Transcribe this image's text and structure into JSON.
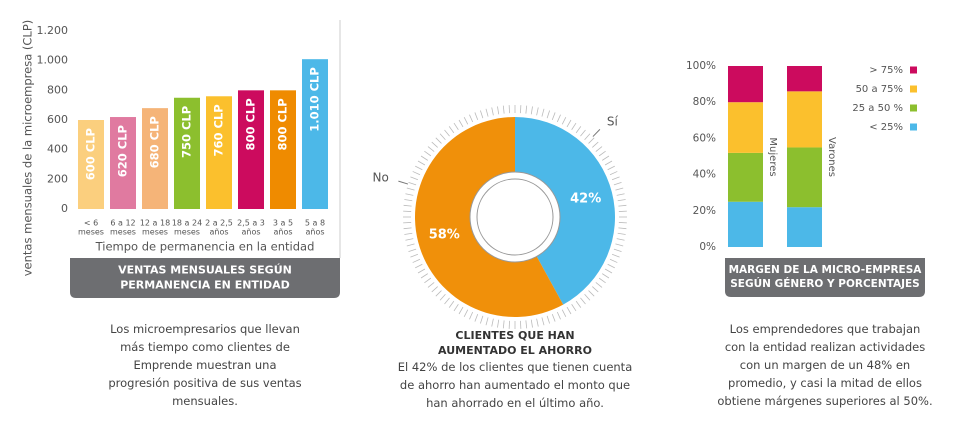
{
  "chart_data": [
    {
      "type": "bar",
      "title": "VENTAS MENSUALES SEGÚN\nPERMANENCIA EN ENTIDAD",
      "description": "Los microempresarios que llevan\nmás tiempo como clientes de\nEmprende muestran una\nprogresión positiva de sus ventas\nmensuales.",
      "ylabel": "ventas mensuales de la microempresa (CLP)",
      "xlabel": "Tiempo de permanencia en la entidad",
      "categories": [
        "< 6\nmeses",
        "6 a 12\nmeses",
        "12 a 18\nmeses",
        "18 a 24\nmeses",
        "2 a 2,5\naños",
        "2,5 a 3\naños",
        "3 a 5\naños",
        "5 a 8\naños"
      ],
      "values": [
        600,
        620,
        680,
        750,
        760,
        800,
        800,
        1010
      ],
      "value_labels": [
        "600 CLP",
        "620 CLP",
        "680 CLP",
        "750 CLP",
        "760 CLP",
        "800 CLP",
        "800 CLP",
        "1.010 CLP"
      ],
      "colors": [
        "#fbcf7e",
        "#e07aa0",
        "#f5b478",
        "#8cbf2e",
        "#fbc02d",
        "#cc0b5e",
        "#ef8b00",
        "#4cb8e8"
      ],
      "ylim": [
        0,
        1200
      ],
      "yticks": [
        0,
        200,
        400,
        600,
        800,
        {
          "value": 1000,
          "label": "1.000"
        },
        {
          "value": 1200,
          "label": "1.200"
        }
      ]
    },
    {
      "type": "pie",
      "title": "CLIENTES QUE HAN\nAUMENTADO EL AHORRO",
      "description": "El 42% de los clientes que tienen cuenta\nde ahorro han aumentado el monto que\nhan ahorrado en el último año.",
      "categories": [
        "Sí",
        "No"
      ],
      "values": [
        42,
        58
      ],
      "value_labels": [
        "42%",
        "58%"
      ],
      "colors": [
        "#4cb8e8",
        "#f0900a"
      ]
    },
    {
      "type": "stacked_bar",
      "title": "MARGEN DE LA MICRO-EMPRESA\nSEGÚN GÉNERO Y PORCENTAJES",
      "description": "Los emprendedores que trabajan\ncon la entidad realizan actividades\ncon un margen de un 48% en\npromedio, y casi la mitad de ellos\nobtiene márgenes superiores al 50%.",
      "categories": [
        "Mujeres",
        "Varones"
      ],
      "series": [
        {
          "name": "< 25%",
          "color": "#4cb8e8",
          "values": [
            25,
            22
          ]
        },
        {
          "name": "25 a 50 %",
          "color": "#8cbf2e",
          "values": [
            27,
            33
          ]
        },
        {
          "name": "50 a 75%",
          "color": "#fbc02d",
          "values": [
            28,
            31
          ]
        },
        {
          "name": "> 75%",
          "color": "#cc0b5e",
          "values": [
            20,
            14
          ]
        }
      ],
      "ylim": [
        0,
        100
      ],
      "yticks": [
        {
          "value": 0,
          "label": "0%"
        },
        {
          "value": 20,
          "label": "20%"
        },
        {
          "value": 40,
          "label": "40%"
        },
        {
          "value": 60,
          "label": "60%"
        },
        {
          "value": 80,
          "label": "80%"
        },
        {
          "value": 100,
          "label": "100%"
        }
      ]
    }
  ]
}
